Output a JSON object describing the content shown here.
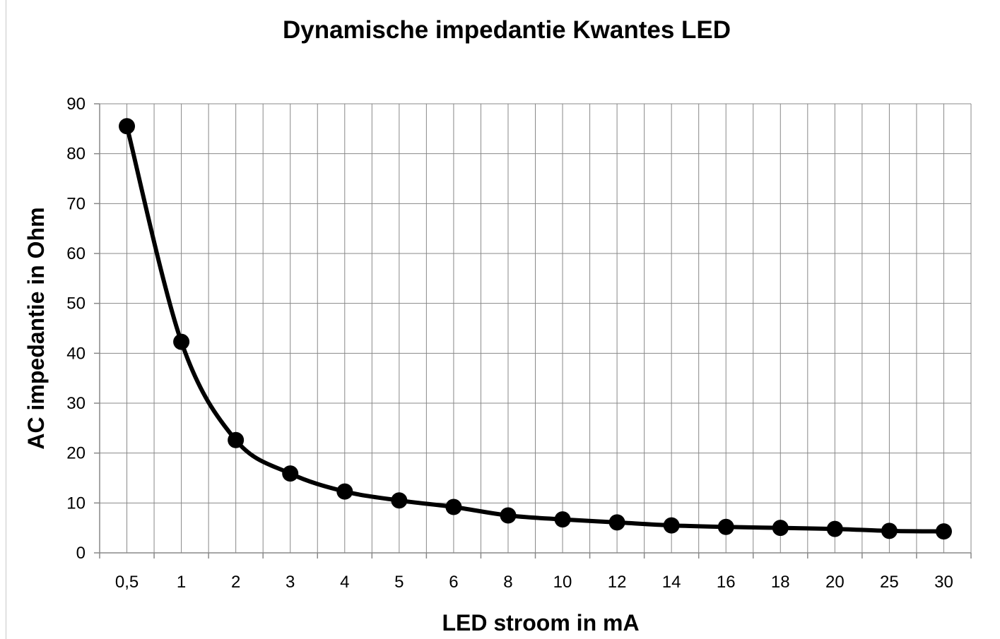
{
  "chart_data": {
    "type": "line",
    "title": "Dynamische impedantie Kwantes LED",
    "xlabel": "LED stroom in mA",
    "ylabel": "AC impedantie in Ohm",
    "categories": [
      "0,5",
      "1",
      "2",
      "3",
      "4",
      "5",
      "6",
      "8",
      "10",
      "12",
      "14",
      "16",
      "18",
      "20",
      "25",
      "30"
    ],
    "series": [
      {
        "values": [
          85.5,
          42.3,
          22.6,
          15.9,
          12.3,
          10.5,
          9.2,
          7.5,
          6.7,
          6.1,
          5.5,
          5.2,
          5.0,
          4.8,
          4.4,
          4.3
        ]
      }
    ],
    "ylim": [
      0,
      90
    ],
    "yticks": [
      0,
      10,
      20,
      30,
      40,
      50,
      60,
      70,
      80,
      90
    ],
    "grid": true,
    "smooth": true,
    "color": "#000000"
  }
}
